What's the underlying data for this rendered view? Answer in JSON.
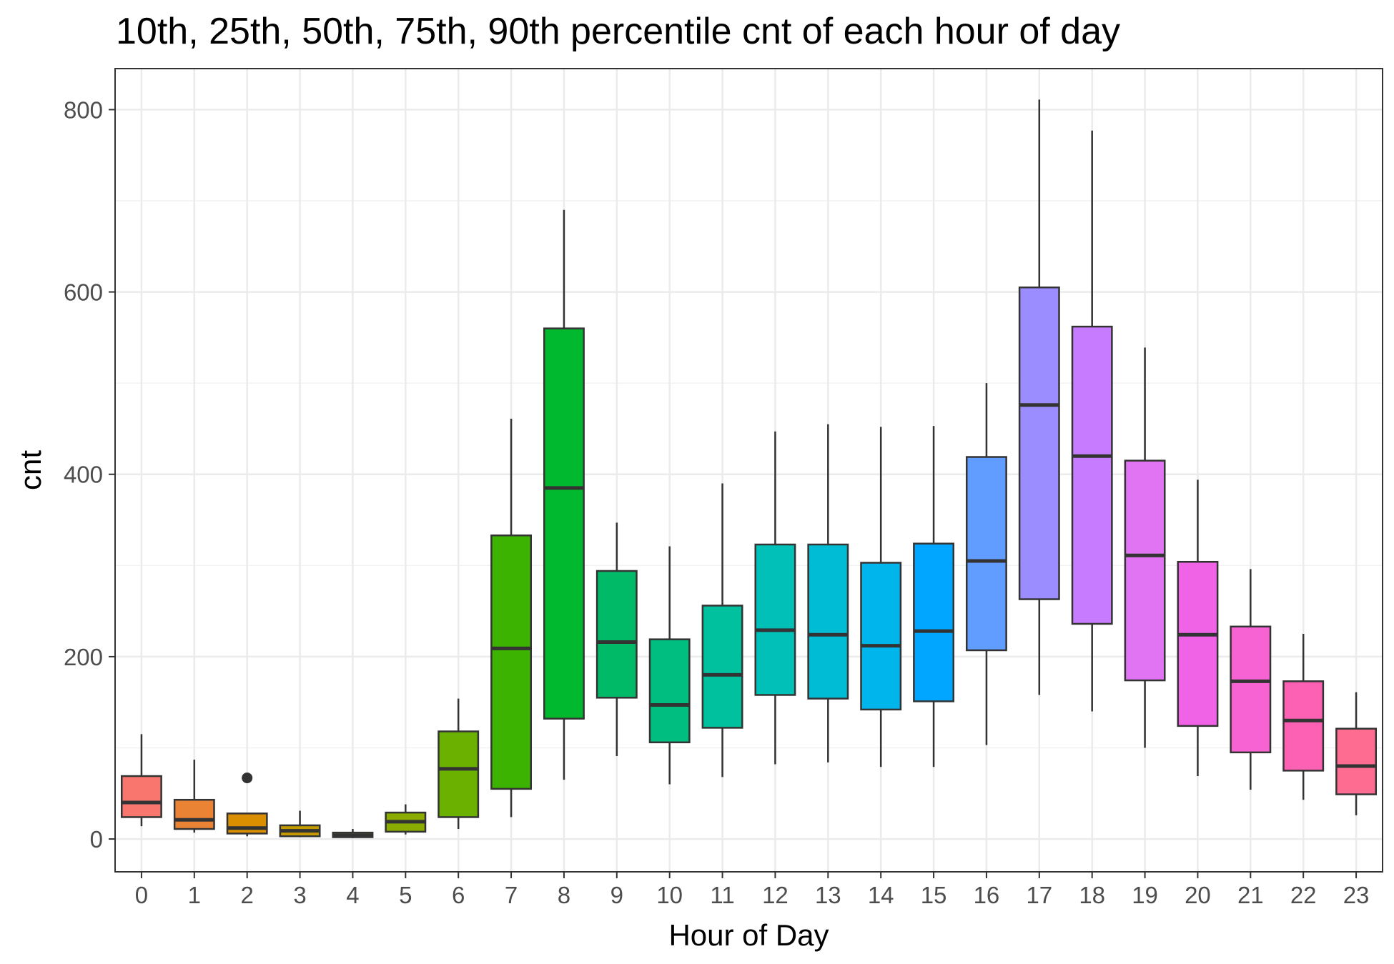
{
  "chart_data": {
    "type": "boxplot",
    "title": "10th, 25th, 50th, 75th, 90th percentile cnt of each hour of day",
    "xlabel": "Hour of Day",
    "ylabel": "cnt",
    "ylim": [
      -36,
      845
    ],
    "yticks": [
      0,
      200,
      400,
      600,
      800
    ],
    "grid": true,
    "legend": "none",
    "categories": [
      "0",
      "1",
      "2",
      "3",
      "4",
      "5",
      "6",
      "7",
      "8",
      "9",
      "10",
      "11",
      "12",
      "13",
      "14",
      "15",
      "16",
      "17",
      "18",
      "19",
      "20",
      "21",
      "22",
      "23"
    ],
    "boxes": [
      {
        "hour": "0",
        "whisker_low": 14,
        "q1": 24,
        "median": 40,
        "q3": 69,
        "whisker_high": 115,
        "color": "#F8766D"
      },
      {
        "hour": "1",
        "whisker_low": 7,
        "q1": 11,
        "median": 21,
        "q3": 43,
        "whisker_high": 87,
        "color": "#EB8335"
      },
      {
        "hour": "2",
        "whisker_low": 3,
        "q1": 6,
        "median": 12,
        "q3": 28,
        "whisker_high": 28,
        "outliers": [
          67
        ],
        "color": "#DA8F00"
      },
      {
        "hour": "3",
        "whisker_low": 2,
        "q1": 3,
        "median": 9,
        "q3": 15,
        "whisker_high": 31,
        "color": "#C49A00"
      },
      {
        "hour": "4",
        "whisker_low": 1,
        "q1": 2,
        "median": 4,
        "q3": 7,
        "whisker_high": 11,
        "color": "#A9A400"
      },
      {
        "hour": "5",
        "whisker_low": 5,
        "q1": 8,
        "median": 19,
        "q3": 29,
        "whisker_high": 38,
        "color": "#8AAB00"
      },
      {
        "hour": "6",
        "whisker_low": 11,
        "q1": 24,
        "median": 77,
        "q3": 118,
        "whisker_high": 154,
        "color": "#6BB100"
      },
      {
        "hour": "7",
        "whisker_low": 24,
        "q1": 55,
        "median": 209,
        "q3": 333,
        "whisker_high": 461,
        "color": "#3BB300"
      },
      {
        "hour": "8",
        "whisker_low": 65,
        "q1": 132,
        "median": 385,
        "q3": 560,
        "whisker_high": 690,
        "color": "#00B92F"
      },
      {
        "hour": "9",
        "whisker_low": 91,
        "q1": 155,
        "median": 216,
        "q3": 294,
        "whisker_high": 347,
        "color": "#00BA68"
      },
      {
        "hour": "10",
        "whisker_low": 60,
        "q1": 106,
        "median": 147,
        "q3": 219,
        "whisker_high": 321,
        "color": "#00BE80"
      },
      {
        "hour": "11",
        "whisker_low": 68,
        "q1": 122,
        "median": 180,
        "q3": 256,
        "whisker_high": 390,
        "color": "#00C19E"
      },
      {
        "hour": "12",
        "whisker_low": 82,
        "q1": 158,
        "median": 229,
        "q3": 323,
        "whisker_high": 447,
        "color": "#00C0B7"
      },
      {
        "hour": "13",
        "whisker_low": 84,
        "q1": 154,
        "median": 224,
        "q3": 323,
        "whisker_high": 455,
        "color": "#00BCD5"
      },
      {
        "hour": "14",
        "whisker_low": 79,
        "q1": 142,
        "median": 212,
        "q3": 303,
        "whisker_high": 452,
        "color": "#00B5EB"
      },
      {
        "hour": "15",
        "whisker_low": 79,
        "q1": 151,
        "median": 228,
        "q3": 324,
        "whisker_high": 453,
        "color": "#00A6FF"
      },
      {
        "hour": "16",
        "whisker_low": 103,
        "q1": 207,
        "median": 305,
        "q3": 419,
        "whisker_high": 500,
        "color": "#619CFF"
      },
      {
        "hour": "17",
        "whisker_low": 158,
        "q1": 263,
        "median": 476,
        "q3": 605,
        "whisker_high": 811,
        "color": "#9B8DFF"
      },
      {
        "hour": "18",
        "whisker_low": 140,
        "q1": 236,
        "median": 420,
        "q3": 562,
        "whisker_high": 777,
        "color": "#C77CFF"
      },
      {
        "hour": "19",
        "whisker_low": 100,
        "q1": 174,
        "median": 311,
        "q3": 415,
        "whisker_high": 539,
        "color": "#E074F2"
      },
      {
        "hour": "20",
        "whisker_low": 69,
        "q1": 124,
        "median": 224,
        "q3": 304,
        "whisker_high": 394,
        "color": "#F063E7"
      },
      {
        "hour": "21",
        "whisker_low": 54,
        "q1": 95,
        "median": 173,
        "q3": 233,
        "whisker_high": 296,
        "color": "#F863D4"
      },
      {
        "hour": "22",
        "whisker_low": 43,
        "q1": 75,
        "median": 130,
        "q3": 173,
        "whisker_high": 225,
        "color": "#FD61B4"
      },
      {
        "hour": "23",
        "whisker_low": 26,
        "q1": 49,
        "median": 80,
        "q3": 121,
        "whisker_high": 161,
        "color": "#FF6C91"
      }
    ]
  }
}
